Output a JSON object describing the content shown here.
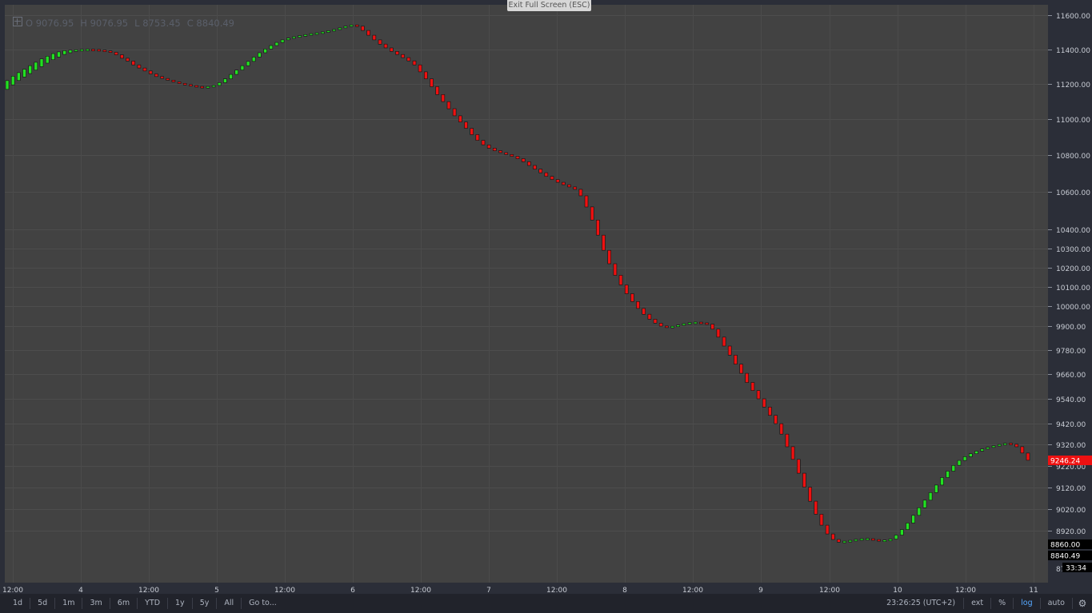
{
  "header": {
    "exit_fullscreen": "Exit Full Screen (ESC)",
    "ohlc": {
      "open": "O 9076.95",
      "high": "H 9076.95",
      "low": "L 8753.45",
      "close": "C 8840.49"
    }
  },
  "toolbar": {
    "ranges": [
      "1d",
      "5d",
      "1m",
      "3m",
      "6m",
      "YTD",
      "1y",
      "5y",
      "All"
    ],
    "goto_label": "Go to...",
    "clock": "23:26:25 (UTC+2)",
    "ext_label": "ext",
    "percent_label": "%",
    "log_label": "log",
    "auto_label": "auto"
  },
  "colors": {
    "background": "#424242",
    "up": "#22e022",
    "down": "#ee1111",
    "accent": "#56a8ff"
  },
  "chart_data": {
    "type": "candlestick",
    "log_scale": true,
    "grid": true,
    "ylim": [
      8780,
      11680
    ],
    "y_ticks": [
      11600,
      11400,
      11200,
      11000,
      10800,
      10600,
      10400,
      10300,
      10200,
      10100,
      10000,
      9900,
      9780,
      9660,
      9540,
      9420,
      9320,
      9220,
      9120,
      9020,
      8920
    ],
    "y_tick_labels": [
      "11600.00",
      "11400.00",
      "11200.00",
      "11000.00",
      "10800.00",
      "10600.00",
      "10400.00",
      "10300.00",
      "10200.00",
      "10100.00",
      "10000.00",
      "9900.00",
      "9780.00",
      "9660.00",
      "9540.00",
      "9420.00",
      "9320.00",
      "9220.00",
      "9120.00",
      "9020.00",
      "8920.00"
    ],
    "bottom_partial_tick": "87",
    "x_labels": [
      "12:00",
      "4",
      "12:00",
      "5",
      "12:00",
      "6",
      "12:00",
      "7",
      "12:00",
      "8",
      "12:00",
      "9",
      "12:00",
      "10",
      "12:00",
      "11"
    ],
    "price_markers": {
      "last_price": "9246.24",
      "high_marker": "8860.00",
      "close_marker": "8840.49",
      "countdown": "33:34"
    },
    "series": [
      {
        "values": [
          [
            11170,
            11220
          ],
          [
            11195,
            11245
          ],
          [
            11220,
            11265
          ],
          [
            11240,
            11285
          ],
          [
            11260,
            11305
          ],
          [
            11280,
            11325
          ],
          [
            11300,
            11345
          ],
          [
            11320,
            11360
          ],
          [
            11340,
            11375
          ],
          [
            11355,
            11385
          ],
          [
            11370,
            11392
          ],
          [
            11380,
            11395
          ],
          [
            11388,
            11397
          ],
          [
            11392,
            11398
          ],
          [
            11395,
            11398
          ],
          [
            11398,
            11394
          ],
          [
            11396,
            11393
          ],
          [
            11393,
            11389
          ],
          [
            11389,
            11383
          ],
          [
            11383,
            11368
          ],
          [
            11368,
            11348
          ],
          [
            11348,
            11332
          ],
          [
            11332,
            11310
          ],
          [
            11310,
            11292
          ],
          [
            11292,
            11275
          ],
          [
            11275,
            11258
          ],
          [
            11258,
            11243
          ],
          [
            11243,
            11232
          ],
          [
            11232,
            11222
          ],
          [
            11222,
            11212
          ],
          [
            11212,
            11203
          ],
          [
            11203,
            11196
          ],
          [
            11196,
            11190
          ],
          [
            11190,
            11184
          ],
          [
            11184,
            11180
          ],
          [
            11180,
            11183
          ],
          [
            11183,
            11192
          ],
          [
            11192,
            11208
          ],
          [
            11208,
            11230
          ],
          [
            11230,
            11255
          ],
          [
            11255,
            11280
          ],
          [
            11280,
            11305
          ],
          [
            11305,
            11330
          ],
          [
            11330,
            11355
          ],
          [
            11355,
            11380
          ],
          [
            11380,
            11402
          ],
          [
            11402,
            11422
          ],
          [
            11422,
            11440
          ],
          [
            11440,
            11455
          ],
          [
            11455,
            11465
          ],
          [
            11465,
            11472
          ],
          [
            11472,
            11478
          ],
          [
            11478,
            11484
          ],
          [
            11484,
            11489
          ],
          [
            11489,
            11494
          ],
          [
            11494,
            11500
          ],
          [
            11500,
            11507
          ],
          [
            11507,
            11515
          ],
          [
            11515,
            11525
          ],
          [
            11525,
            11535
          ],
          [
            11535,
            11541
          ],
          [
            11541,
            11535
          ],
          [
            11535,
            11510
          ],
          [
            11510,
            11482
          ],
          [
            11482,
            11455
          ],
          [
            11455,
            11430
          ],
          [
            11430,
            11408
          ],
          [
            11408,
            11388
          ],
          [
            11388,
            11370
          ],
          [
            11370,
            11352
          ],
          [
            11352,
            11333
          ],
          [
            11333,
            11310
          ],
          [
            11310,
            11270
          ],
          [
            11270,
            11230
          ],
          [
            11230,
            11185
          ],
          [
            11185,
            11140
          ],
          [
            11140,
            11100
          ],
          [
            11100,
            11060
          ],
          [
            11060,
            11020
          ],
          [
            11020,
            10985
          ],
          [
            10985,
            10950
          ],
          [
            10950,
            10915
          ],
          [
            10915,
            10883
          ],
          [
            10883,
            10858
          ],
          [
            10858,
            10840
          ],
          [
            10840,
            10826
          ],
          [
            10826,
            10815
          ],
          [
            10815,
            10805
          ],
          [
            10805,
            10795
          ],
          [
            10795,
            10782
          ],
          [
            10782,
            10765
          ],
          [
            10765,
            10745
          ],
          [
            10745,
            10725
          ],
          [
            10725,
            10705
          ],
          [
            10705,
            10685
          ],
          [
            10685,
            10668
          ],
          [
            10668,
            10653
          ],
          [
            10653,
            10640
          ],
          [
            10640,
            10628
          ],
          [
            10628,
            10615
          ],
          [
            10615,
            10580
          ],
          [
            10580,
            10520
          ],
          [
            10520,
            10450
          ],
          [
            10450,
            10370
          ],
          [
            10370,
            10290
          ],
          [
            10290,
            10220
          ],
          [
            10220,
            10160
          ],
          [
            10160,
            10110
          ],
          [
            10110,
            10065
          ],
          [
            10065,
            10025
          ],
          [
            10025,
            9990
          ],
          [
            9990,
            9960
          ],
          [
            9960,
            9935
          ],
          [
            9935,
            9915
          ],
          [
            9915,
            9900
          ],
          [
            9900,
            9893
          ],
          [
            9893,
            9898
          ],
          [
            9898,
            9905
          ],
          [
            9905,
            9912
          ],
          [
            9912,
            9916
          ],
          [
            9916,
            9917
          ],
          [
            9917,
            9915
          ],
          [
            9915,
            9910
          ],
          [
            9910,
            9885
          ],
          [
            9885,
            9845
          ],
          [
            9845,
            9800
          ],
          [
            9800,
            9755
          ],
          [
            9755,
            9710
          ],
          [
            9710,
            9665
          ],
          [
            9665,
            9620
          ],
          [
            9620,
            9580
          ],
          [
            9580,
            9540
          ],
          [
            9540,
            9500
          ],
          [
            9500,
            9460
          ],
          [
            9460,
            9420
          ],
          [
            9420,
            9370
          ],
          [
            9370,
            9310
          ],
          [
            9310,
            9250
          ],
          [
            9250,
            9185
          ],
          [
            9185,
            9120
          ],
          [
            9120,
            9055
          ],
          [
            9055,
            8995
          ],
          [
            8995,
            8945
          ],
          [
            8945,
            8905
          ],
          [
            8905,
            8880
          ],
          [
            8880,
            8868
          ],
          [
            8868,
            8870
          ],
          [
            8870,
            8875
          ],
          [
            8875,
            8879
          ],
          [
            8879,
            8881
          ],
          [
            8881,
            8882
          ],
          [
            8882,
            8878
          ],
          [
            8878,
            8874
          ],
          [
            8874,
            8874
          ],
          [
            8874,
            8882
          ],
          [
            8882,
            8900
          ],
          [
            8900,
            8925
          ],
          [
            8925,
            8955
          ],
          [
            8955,
            8990
          ],
          [
            8990,
            9025
          ],
          [
            9025,
            9060
          ],
          [
            9060,
            9095
          ],
          [
            9095,
            9130
          ],
          [
            9130,
            9165
          ],
          [
            9165,
            9195
          ],
          [
            9195,
            9222
          ],
          [
            9222,
            9245
          ],
          [
            9245,
            9263
          ],
          [
            9263,
            9277
          ],
          [
            9277,
            9289
          ],
          [
            9289,
            9299
          ],
          [
            9299,
            9307
          ],
          [
            9307,
            9314
          ],
          [
            9314,
            9320
          ],
          [
            9320,
            9324
          ],
          [
            9324,
            9322
          ],
          [
            9322,
            9310
          ],
          [
            9310,
            9280
          ],
          [
            9280,
            9246
          ]
        ]
      }
    ]
  }
}
